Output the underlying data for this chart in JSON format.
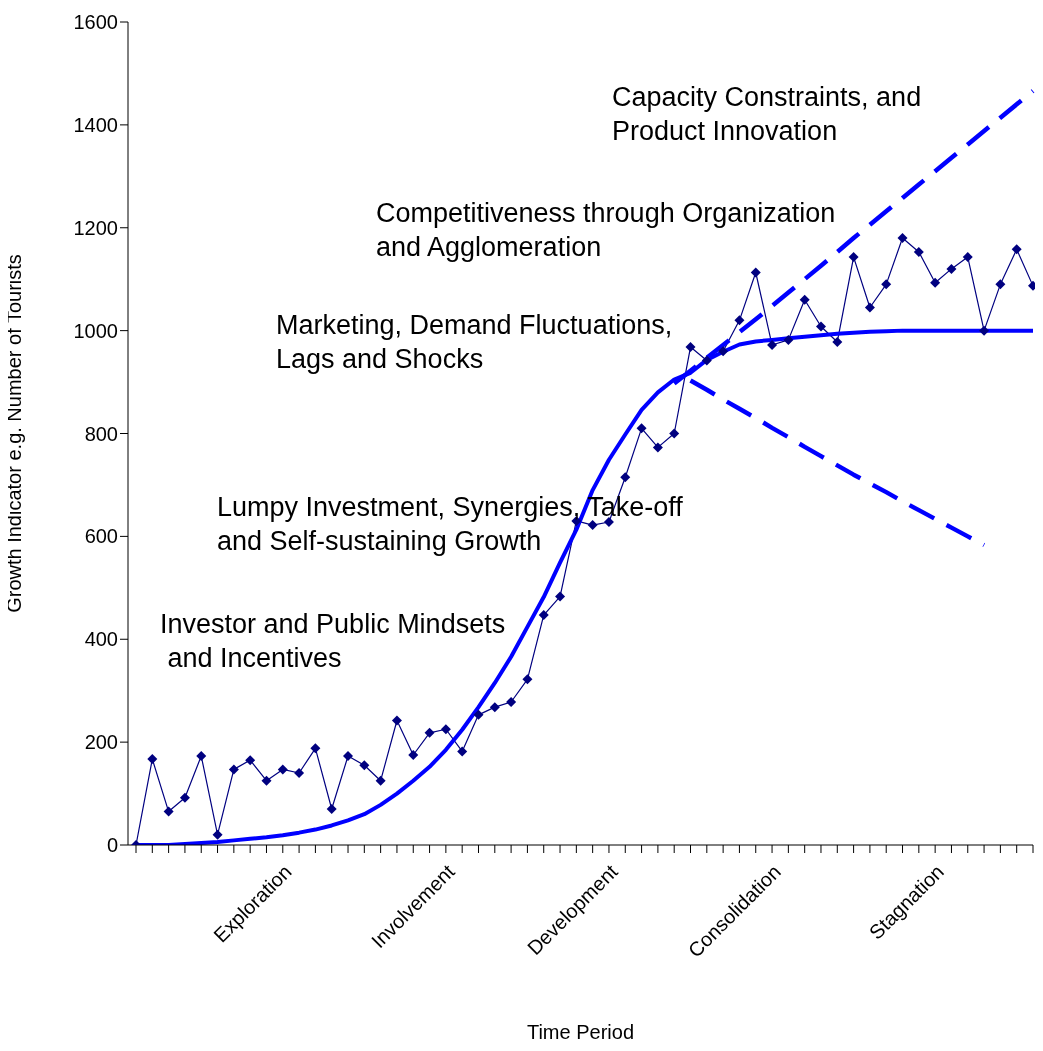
{
  "chart_data": {
    "type": "line",
    "xlabel": "Time Period",
    "ylabel": "Growth Indicator e.g. Number of Tourists",
    "categories": [
      null,
      null,
      null,
      null,
      null,
      null,
      null,
      null,
      null,
      "Exploration",
      null,
      null,
      null,
      null,
      null,
      null,
      null,
      null,
      null,
      "Involvement",
      null,
      null,
      null,
      null,
      null,
      null,
      null,
      null,
      null,
      "Development",
      null,
      null,
      null,
      null,
      null,
      null,
      null,
      null,
      null,
      "Consolidation",
      null,
      null,
      null,
      null,
      null,
      null,
      null,
      null,
      null,
      "Stagnation",
      null,
      null,
      null,
      null,
      null,
      null
    ],
    "series": [
      {
        "color": "#000080",
        "marker": "diamond",
        "line_style": "solid",
        "values": [
          0,
          167,
          65,
          92,
          173,
          20,
          147,
          165,
          125,
          147,
          140,
          188,
          70,
          173,
          155,
          125,
          242,
          175,
          218,
          225,
          182,
          253,
          268,
          278,
          322,
          447,
          483,
          630,
          622,
          628,
          715,
          810,
          773,
          800,
          968,
          942,
          960,
          1020,
          1113,
          972,
          982,
          1060,
          1008,
          978,
          1143,
          1045,
          1090,
          1180,
          1153,
          1093,
          1120,
          1143,
          1000,
          1090,
          1158,
          1087
        ]
      },
      {
        "color": "#0000ff",
        "marker": "none",
        "line_style": "solid",
        "values": [
          0,
          0,
          0,
          2,
          4,
          6,
          9,
          12,
          15,
          19,
          24,
          30,
          38,
          48,
          60,
          78,
          100,
          125,
          152,
          185,
          224,
          268,
          315,
          366,
          424,
          482,
          549,
          613,
          690,
          749,
          798,
          846,
          880,
          905,
          918,
          943,
          959,
          973,
          979,
          982,
          985,
          988,
          991,
          994,
          996,
          998,
          999,
          1000,
          1000,
          1000,
          1000,
          1000,
          1000,
          1000,
          1000,
          1000
        ]
      },
      {
        "color": "#0000ff",
        "marker": "none",
        "line_style": "dashed",
        "values": [
          null,
          null,
          null,
          null,
          null,
          null,
          null,
          null,
          null,
          null,
          null,
          null,
          null,
          null,
          null,
          null,
          null,
          null,
          null,
          null,
          null,
          null,
          null,
          null,
          null,
          null,
          null,
          null,
          null,
          null,
          null,
          null,
          null,
          897,
          922,
          947,
          972,
          997,
          1022,
          1048,
          1074,
          1100,
          1126,
          1153,
          1180,
          1206,
          1232,
          1258,
          1284,
          1310,
          1336,
          1362,
          1388,
          1414,
          1440,
          1466
        ]
      },
      {
        "color": "#0000ff",
        "marker": "none",
        "line_style": "dashed",
        "values": [
          null,
          null,
          null,
          null,
          null,
          null,
          null,
          null,
          null,
          null,
          null,
          null,
          null,
          null,
          null,
          null,
          null,
          null,
          null,
          null,
          null,
          null,
          null,
          null,
          null,
          null,
          null,
          null,
          null,
          null,
          null,
          null,
          null,
          null,
          903,
          885,
          866,
          848,
          830,
          811,
          793,
          774,
          756,
          738,
          720,
          703,
          686,
          668,
          651,
          634,
          617,
          600,
          583,
          null,
          null,
          null
        ]
      }
    ],
    "ylim": [
      0,
      1600
    ],
    "yticks": [
      0,
      200,
      400,
      600,
      800,
      1000,
      1200,
      1400,
      1600
    ],
    "grid": false,
    "legend": false,
    "annotations": [
      "Capacity Constraints, and\nProduct Innovation",
      "Competitiveness through Organization\nand Agglomeration",
      "Marketing, Demand Fluctuations,\nLags and Shocks",
      "Lumpy Investment, Synergies, Take-off\nand Self-sustaining Growth",
      "Investor and Public Mindsets\n and Incentives"
    ]
  }
}
